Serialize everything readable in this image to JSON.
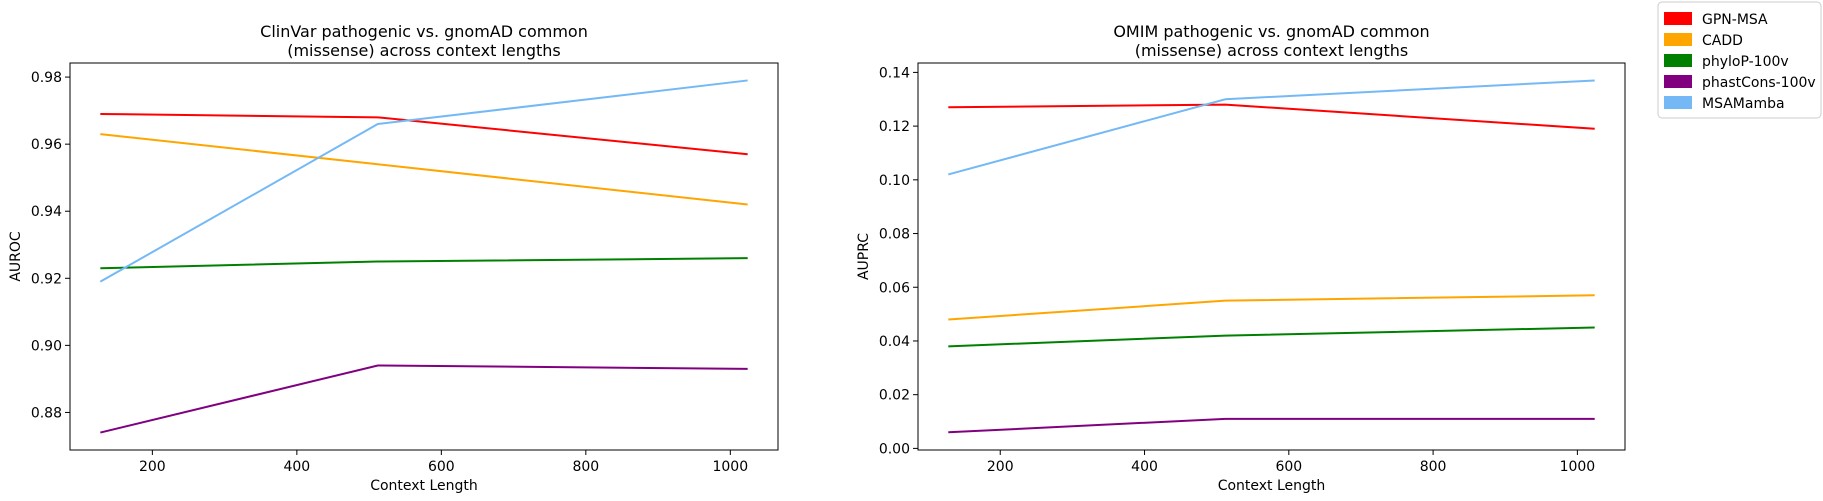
{
  "chart_data": [
    {
      "type": "line",
      "title": "ClinVar pathogenic vs. gnomAD common\n(missense) across context lengths",
      "xlabel": "Context Length",
      "ylabel": "AUROC",
      "x": [
        128,
        512,
        1024
      ],
      "xlim": [
        86,
        1066
      ],
      "ylim": [
        0.8688,
        0.9842
      ],
      "xticks": [
        200,
        400,
        600,
        800,
        1000
      ],
      "xtick_labels": [
        "200",
        "400",
        "600",
        "800",
        "1000"
      ],
      "yticks": [
        0.88,
        0.9,
        0.92,
        0.94,
        0.96,
        0.98
      ],
      "ytick_labels": [
        "0.88",
        "0.90",
        "0.92",
        "0.94",
        "0.96",
        "0.98"
      ],
      "grid": false,
      "series": [
        {
          "name": "GPN-MSA",
          "color": "#ff0000",
          "values": [
            0.969,
            0.968,
            0.957
          ]
        },
        {
          "name": "CADD",
          "color": "#ffa500",
          "values": [
            0.963,
            0.954,
            0.942
          ]
        },
        {
          "name": "phyloP-100v",
          "color": "#008000",
          "values": [
            0.923,
            0.925,
            0.926
          ]
        },
        {
          "name": "phastCons-100v",
          "color": "#800080",
          "values": [
            0.874,
            0.894,
            0.893
          ]
        },
        {
          "name": "MSAMamba",
          "color": "#74b9f5",
          "values": [
            0.919,
            0.966,
            0.979
          ]
        }
      ]
    },
    {
      "type": "line",
      "title": "OMIM pathogenic vs. gnomAD common\n(missense) across context lengths",
      "xlabel": "Context Length",
      "ylabel": "AUPRC",
      "x": [
        128,
        512,
        1024
      ],
      "xlim": [
        86,
        1066
      ],
      "ylim": [
        -0.0006,
        0.1435
      ],
      "xticks": [
        200,
        400,
        600,
        800,
        1000
      ],
      "xtick_labels": [
        "200",
        "400",
        "600",
        "800",
        "1000"
      ],
      "yticks": [
        0.0,
        0.02,
        0.04,
        0.06,
        0.08,
        0.1,
        0.12,
        0.14
      ],
      "ytick_labels": [
        "0.00",
        "0.02",
        "0.04",
        "0.06",
        "0.08",
        "0.10",
        "0.12",
        "0.14"
      ],
      "grid": false,
      "series": [
        {
          "name": "GPN-MSA",
          "color": "#ff0000",
          "values": [
            0.127,
            0.128,
            0.119
          ]
        },
        {
          "name": "CADD",
          "color": "#ffa500",
          "values": [
            0.048,
            0.055,
            0.057
          ]
        },
        {
          "name": "phyloP-100v",
          "color": "#008000",
          "values": [
            0.038,
            0.042,
            0.045
          ]
        },
        {
          "name": "phastCons-100v",
          "color": "#800080",
          "values": [
            0.006,
            0.011,
            0.011
          ]
        },
        {
          "name": "MSAMamba",
          "color": "#74b9f5",
          "values": [
            0.102,
            0.13,
            0.137
          ]
        }
      ]
    }
  ],
  "legend": {
    "placement": "top-right",
    "entries": [
      {
        "label": "GPN-MSA",
        "color": "#ff0000"
      },
      {
        "label": "CADD",
        "color": "#ffa500"
      },
      {
        "label": "phyloP-100v",
        "color": "#008000"
      },
      {
        "label": "phastCons-100v",
        "color": "#800080"
      },
      {
        "label": "MSAMamba",
        "color": "#74b9f5"
      }
    ]
  }
}
